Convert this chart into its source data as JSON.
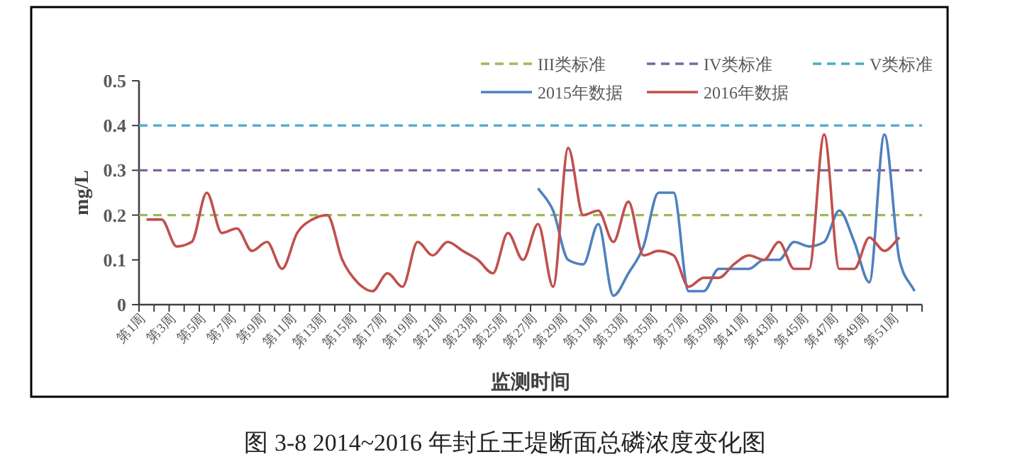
{
  "chart_data": {
    "type": "line",
    "title": "图 3-8 2014~2016 年封丘王堤断面总磷浓度变化图",
    "xlabel": "监测时间",
    "ylabel": "mg/L",
    "categories": [
      "第1周",
      null,
      "第3周",
      null,
      "第5周",
      null,
      "第7周",
      null,
      "第9周",
      null,
      "第11周",
      null,
      "第13周",
      null,
      "第15周",
      null,
      "第17周",
      null,
      "第19周",
      null,
      "第21周",
      null,
      "第23周",
      null,
      "第25周",
      null,
      "第27周",
      null,
      "第29周",
      null,
      "第31周",
      null,
      "第33周",
      null,
      "第35周",
      null,
      "第37周",
      null,
      "第39周",
      null,
      "第41周",
      null,
      "第43周",
      null,
      "第45周",
      null,
      "第47周",
      null,
      "第49周",
      null,
      "第51周",
      null
    ],
    "series": [
      {
        "name": "2015年数据",
        "color": "#4f81bd",
        "values": [
          null,
          null,
          null,
          null,
          null,
          null,
          null,
          null,
          null,
          null,
          null,
          null,
          null,
          null,
          null,
          null,
          null,
          null,
          null,
          null,
          null,
          null,
          null,
          null,
          null,
          null,
          0.26,
          0.21,
          0.1,
          0.09,
          0.18,
          0.02,
          0.07,
          0.13,
          0.25,
          0.25,
          0.03,
          0.03,
          0.08,
          0.08,
          0.08,
          0.1,
          0.1,
          0.14,
          0.13,
          0.14,
          0.21,
          0.14,
          0.05,
          0.38,
          0.1,
          0.03
        ]
      },
      {
        "name": "2016年数据",
        "color": "#c0504d",
        "values": [
          0.19,
          0.19,
          0.13,
          0.14,
          0.25,
          0.16,
          0.17,
          0.12,
          0.14,
          0.08,
          0.16,
          0.19,
          0.2,
          0.1,
          0.05,
          0.03,
          0.07,
          0.04,
          0.14,
          0.11,
          0.14,
          0.12,
          0.1,
          0.07,
          0.16,
          0.1,
          0.18,
          0.04,
          0.35,
          0.2,
          0.21,
          0.14,
          0.23,
          0.11,
          0.12,
          0.11,
          0.04,
          0.06,
          0.06,
          0.09,
          0.11,
          0.1,
          0.14,
          0.08,
          0.08,
          0.38,
          0.08,
          0.08,
          0.15,
          0.12,
          0.15,
          null
        ]
      }
    ],
    "ref_lines": [
      {
        "axis": "y",
        "value": 0.2,
        "label": "III类标准",
        "color": "#9bbb59",
        "line_style": "dashed"
      },
      {
        "axis": "y",
        "value": 0.3,
        "label": "IV类标准",
        "color": "#8064a2",
        "line_style": "dashed"
      },
      {
        "axis": "y",
        "value": 0.4,
        "label": "V类标准",
        "color": "#4bacc6",
        "line_style": "dashed"
      }
    ],
    "ylim": [
      0,
      0.5
    ],
    "yticks": [
      0,
      0.1,
      0.2,
      0.3,
      0.4,
      0.5
    ],
    "grid": false,
    "legend": "top right",
    "marker": "none",
    "line_style": "solid"
  }
}
